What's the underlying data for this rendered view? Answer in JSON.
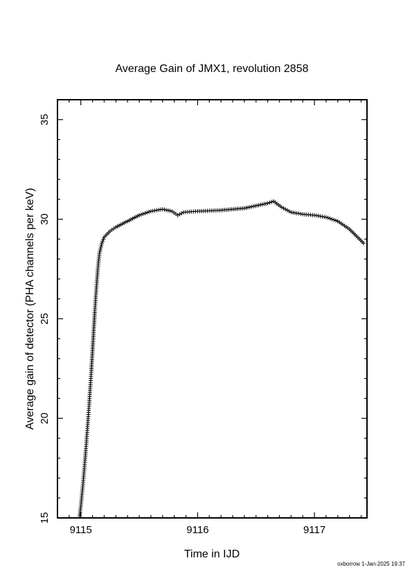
{
  "chart_data": {
    "type": "scatter",
    "title": "Average Gain of JMX1, revolution 2858",
    "xlabel": "Time in IJD",
    "ylabel": "Average gain of detector (PHA channels per keV)",
    "xlim": [
      9114.8,
      9117.45
    ],
    "ylim": [
      15,
      36
    ],
    "xticks": [
      9115,
      9116,
      9117
    ],
    "yticks": [
      15,
      20,
      25,
      30,
      35
    ],
    "grid": false,
    "legend": "none",
    "marker": "plus",
    "series": [
      {
        "points": [
          [
            9114.99,
            15.1
          ],
          [
            9115.0,
            15.6
          ],
          [
            9115.01,
            16.2
          ],
          [
            9115.02,
            16.8
          ],
          [
            9115.03,
            17.5
          ],
          [
            9115.04,
            18.2
          ],
          [
            9115.05,
            19.0
          ],
          [
            9115.06,
            19.8
          ],
          [
            9115.07,
            20.6
          ],
          [
            9115.08,
            21.5
          ],
          [
            9115.09,
            22.4
          ],
          [
            9115.1,
            23.4
          ],
          [
            9115.11,
            24.4
          ],
          [
            9115.12,
            25.4
          ],
          [
            9115.13,
            26.3
          ],
          [
            9115.14,
            27.1
          ],
          [
            9115.15,
            27.8
          ],
          [
            9115.16,
            28.3
          ],
          [
            9115.18,
            28.8
          ],
          [
            9115.2,
            29.1
          ],
          [
            9115.25,
            29.4
          ],
          [
            9115.3,
            29.6
          ],
          [
            9115.4,
            29.9
          ],
          [
            9115.5,
            30.2
          ],
          [
            9115.6,
            30.4
          ],
          [
            9115.7,
            30.5
          ],
          [
            9115.78,
            30.4
          ],
          [
            9115.83,
            30.2
          ],
          [
            9115.88,
            30.35
          ],
          [
            9116.0,
            30.4
          ],
          [
            9116.2,
            30.45
          ],
          [
            9116.4,
            30.55
          ],
          [
            9116.6,
            30.8
          ],
          [
            9116.65,
            30.9
          ],
          [
            9116.72,
            30.6
          ],
          [
            9116.8,
            30.35
          ],
          [
            9116.9,
            30.25
          ],
          [
            9117.0,
            30.2
          ],
          [
            9117.1,
            30.1
          ],
          [
            9117.2,
            29.9
          ],
          [
            9117.3,
            29.5
          ],
          [
            9117.42,
            28.8
          ]
        ]
      }
    ]
  },
  "footer": {
    "stamp": "oxborrow  1-Jan-2025 19:37"
  }
}
